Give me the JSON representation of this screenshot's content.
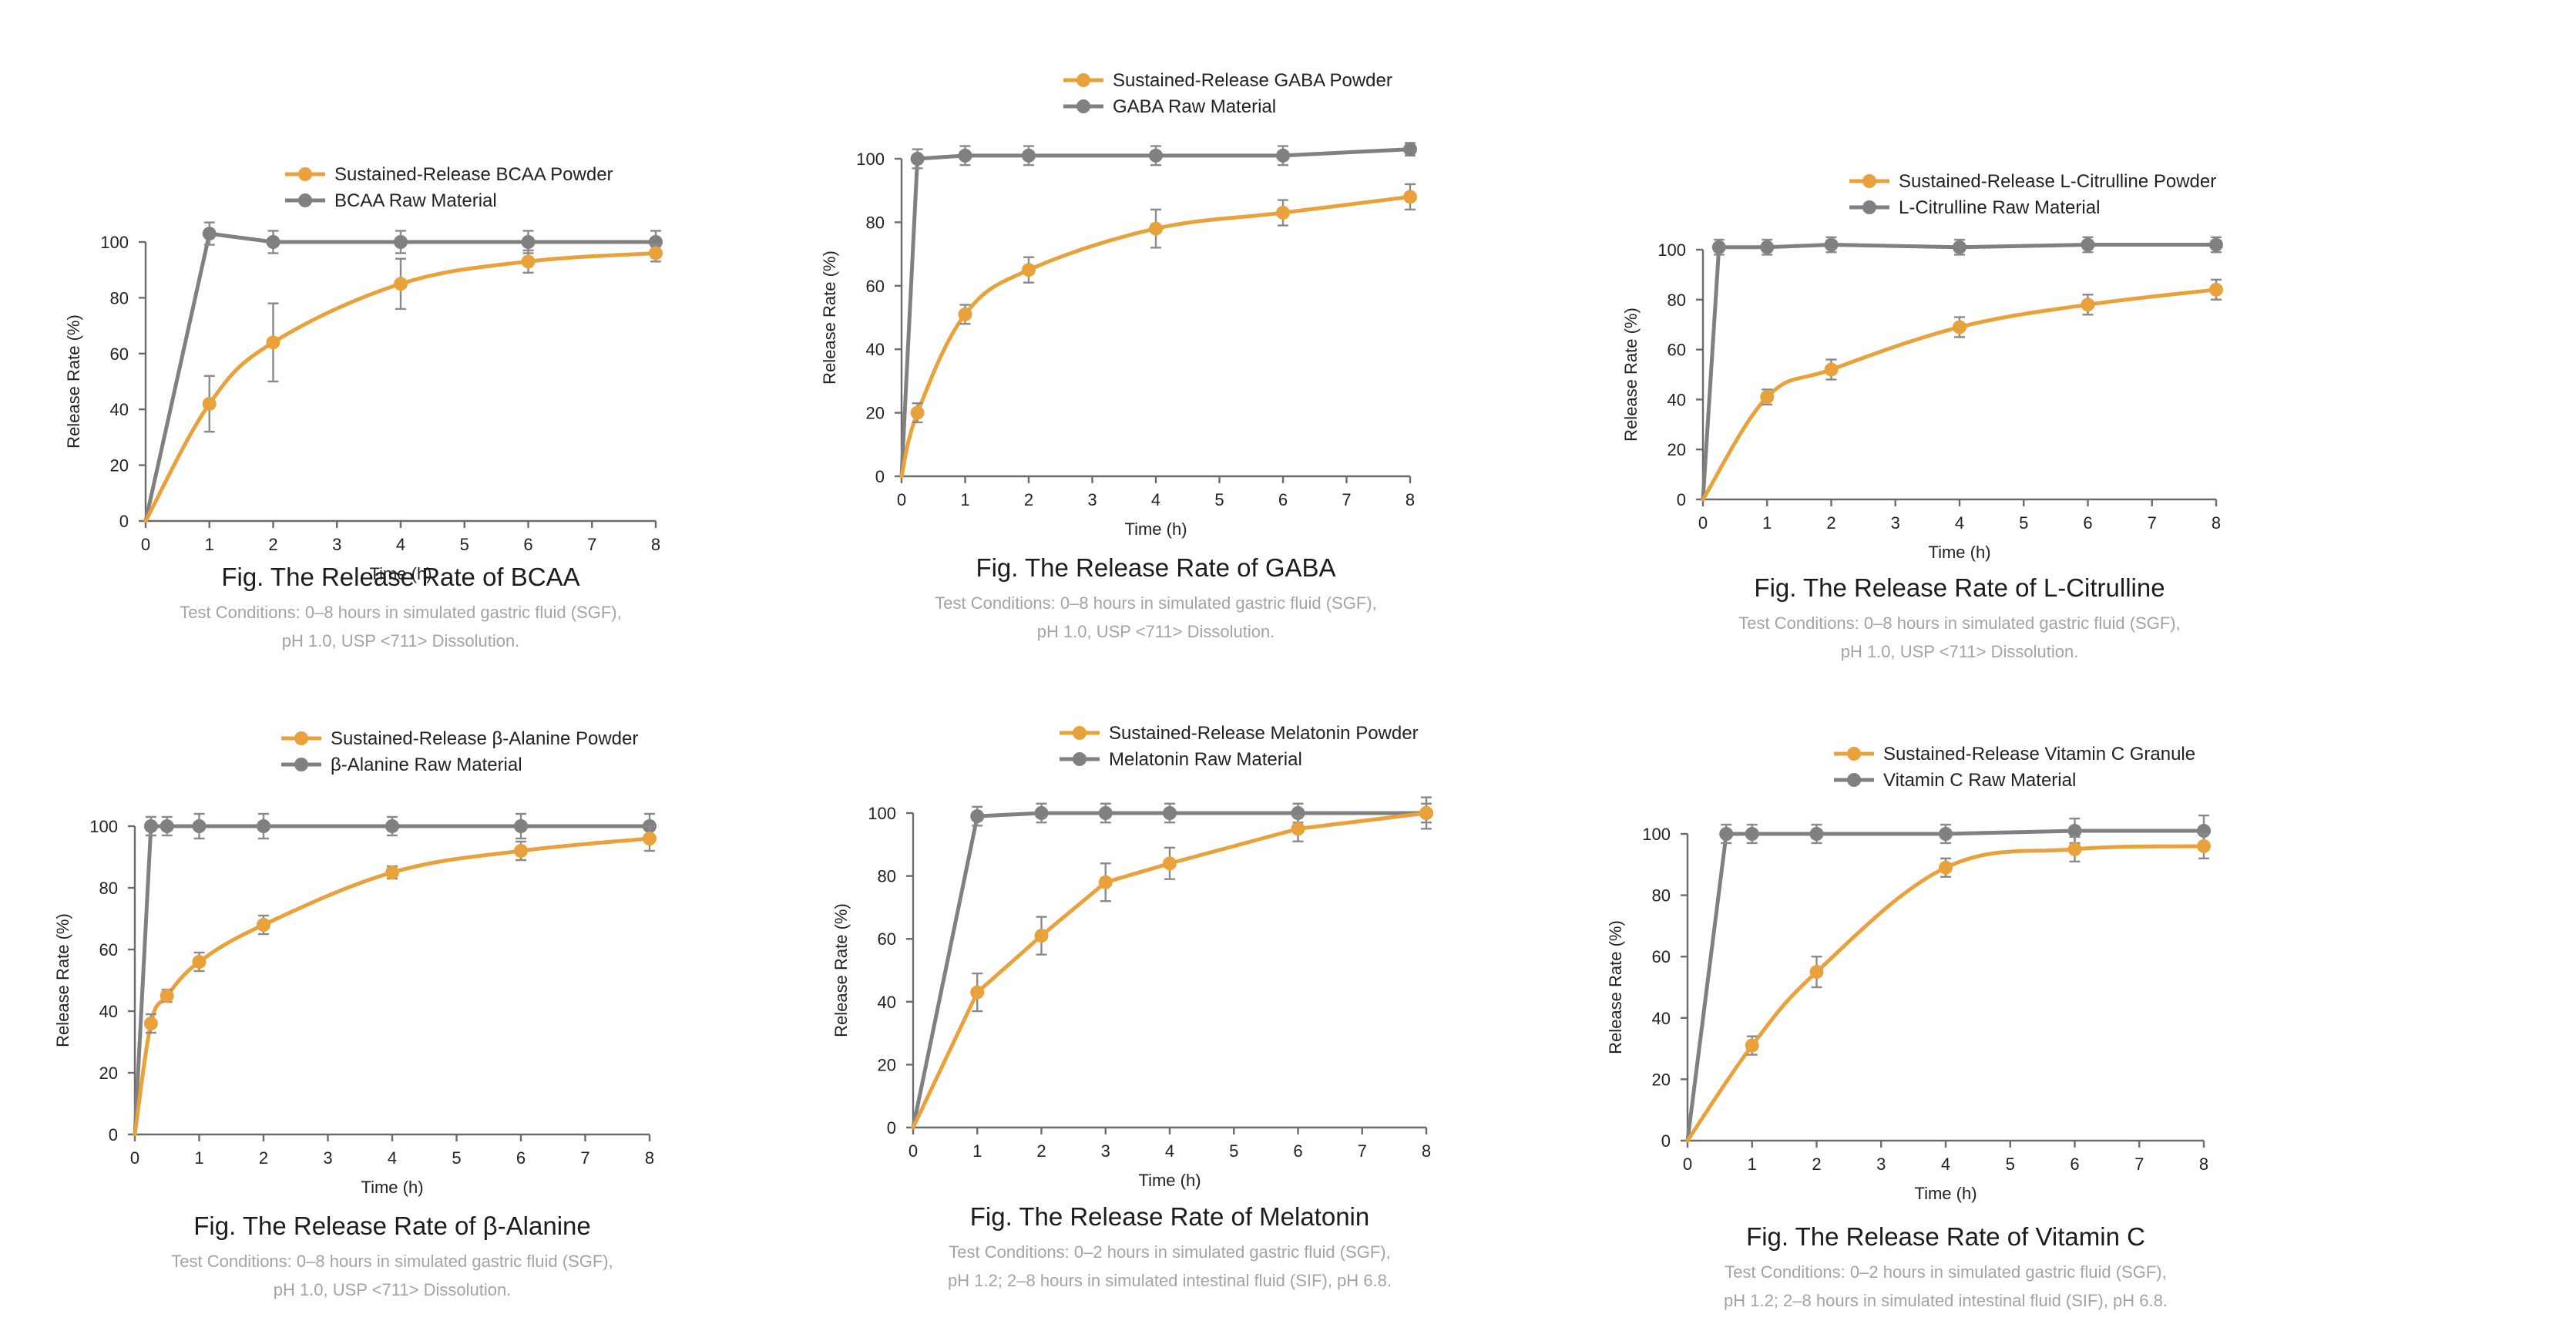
{
  "colors": {
    "sustained": "#E9A23B",
    "raw": "#808080"
  },
  "chart_data": [
    {
      "type": "line",
      "title": "Fig. The Release Rate of BCAA",
      "conditions": [
        "Test Conditions: 0–8 hours in simulated gastric fluid (SGF),",
        "pH 1.0, USP <711> Dissolution."
      ],
      "xlabel": "Time (h)",
      "ylabel": "Release Rate (%)",
      "xlim": [
        0,
        8
      ],
      "ylim": [
        0,
        100
      ],
      "xticks": [
        0,
        1,
        2,
        3,
        4,
        5,
        6,
        7,
        8
      ],
      "yticks": [
        0,
        20,
        40,
        60,
        80,
        100
      ],
      "smooth": true,
      "legend": "top-left",
      "series": [
        {
          "name": "Sustained-Release BCAA Powder",
          "color": "#E9A23B",
          "x": [
            0,
            1,
            2,
            4,
            6,
            8
          ],
          "y": [
            0,
            42,
            64,
            85,
            93,
            96
          ],
          "err": [
            0,
            10,
            14,
            9,
            4,
            3
          ]
        },
        {
          "name": "BCAA Raw Material",
          "color": "#808080",
          "x": [
            0,
            1,
            2,
            4,
            6,
            8
          ],
          "y": [
            0,
            103,
            100,
            100,
            100,
            100
          ],
          "err": [
            0,
            4,
            4,
            4,
            4,
            4
          ]
        }
      ]
    },
    {
      "type": "line",
      "title": "Fig. The Release Rate of GABA",
      "conditions": [
        "Test Conditions: 0–8 hours in simulated gastric fluid (SGF),",
        "pH 1.0, USP <711> Dissolution."
      ],
      "xlabel": "Time (h)",
      "ylabel": "Release Rate (%)",
      "xlim": [
        0,
        8
      ],
      "ylim": [
        0,
        100
      ],
      "xticks": [
        0,
        1,
        2,
        3,
        4,
        5,
        6,
        7,
        8
      ],
      "yticks": [
        0,
        20,
        40,
        60,
        80,
        100
      ],
      "smooth": true,
      "legend": "top-left",
      "series": [
        {
          "name": "Sustained-Release GABA Powder",
          "color": "#E9A23B",
          "x": [
            0,
            0.25,
            1,
            2,
            4,
            6,
            8
          ],
          "y": [
            0,
            20,
            51,
            65,
            78,
            83,
            88
          ],
          "err": [
            0,
            3,
            3,
            4,
            6,
            4,
            4
          ]
        },
        {
          "name": "GABA Raw Material",
          "color": "#808080",
          "x": [
            0,
            0.25,
            1,
            2,
            4,
            6,
            8
          ],
          "y": [
            0,
            100,
            101,
            101,
            101,
            101,
            103
          ],
          "err": [
            0,
            3,
            3,
            3,
            3,
            3,
            2
          ]
        }
      ]
    },
    {
      "type": "line",
      "title": "Fig. The Release Rate of L-Citrulline",
      "conditions": [
        "Test Conditions: 0–8 hours in simulated gastric fluid (SGF),",
        "pH 1.0, USP <711> Dissolution."
      ],
      "xlabel": "Time (h)",
      "ylabel": "Release Rate (%)",
      "xlim": [
        0,
        8
      ],
      "ylim": [
        0,
        100
      ],
      "xticks": [
        0,
        1,
        2,
        3,
        4,
        5,
        6,
        7,
        8
      ],
      "yticks": [
        0,
        20,
        40,
        60,
        80,
        100
      ],
      "smooth": true,
      "legend": "top-left",
      "series": [
        {
          "name": "Sustained-Release L-Citrulline Powder",
          "color": "#E9A23B",
          "x": [
            0,
            1,
            2,
            4,
            6,
            8
          ],
          "y": [
            0,
            41,
            52,
            69,
            78,
            84
          ],
          "err": [
            0,
            3,
            4,
            4,
            4,
            4
          ]
        },
        {
          "name": "L-Citrulline Raw Material",
          "color": "#808080",
          "x": [
            0,
            0.25,
            1,
            2,
            4,
            6,
            8
          ],
          "y": [
            0,
            101,
            101,
            102,
            101,
            102,
            102
          ],
          "err": [
            0,
            3,
            3,
            3,
            3,
            3,
            3
          ]
        }
      ]
    },
    {
      "type": "line",
      "title": "Fig. The Release Rate of β-Alanine",
      "conditions": [
        "Test Conditions: 0–8 hours in simulated gastric fluid (SGF),",
        "pH 1.0, USP <711> Dissolution."
      ],
      "xlabel": "Time (h)",
      "ylabel": "Release Rate (%)",
      "xlim": [
        0,
        8
      ],
      "ylim": [
        0,
        100
      ],
      "xticks": [
        0,
        1,
        2,
        3,
        4,
        5,
        6,
        7,
        8
      ],
      "yticks": [
        0,
        20,
        40,
        60,
        80,
        100
      ],
      "smooth": true,
      "legend": "top-left",
      "series": [
        {
          "name": "Sustained-Release β-Alanine Powder",
          "color": "#E9A23B",
          "x": [
            0,
            0.25,
            0.5,
            1,
            2,
            4,
            6,
            8
          ],
          "y": [
            0,
            36,
            45,
            56,
            68,
            85,
            92,
            96
          ],
          "err": [
            0,
            3,
            2,
            3,
            3,
            2,
            3,
            4
          ]
        },
        {
          "name": "β-Alanine Raw Material",
          "color": "#808080",
          "x": [
            0,
            0.25,
            0.5,
            1,
            2,
            4,
            6,
            8
          ],
          "y": [
            0,
            100,
            100,
            100,
            100,
            100,
            100,
            100
          ],
          "err": [
            0,
            3,
            3,
            4,
            4,
            3,
            4,
            4
          ]
        }
      ]
    },
    {
      "type": "line",
      "title": "Fig. The Release Rate of Melatonin",
      "conditions": [
        "Test Conditions: 0–2 hours in simulated gastric fluid (SGF),",
        "pH 1.2; 2–8 hours in simulated intestinal fluid (SIF), pH 6.8."
      ],
      "xlabel": "Time (h)",
      "ylabel": "Release Rate (%)",
      "xlim": [
        0,
        8
      ],
      "ylim": [
        0,
        100
      ],
      "xticks": [
        0,
        1,
        2,
        3,
        4,
        5,
        6,
        7,
        8
      ],
      "yticks": [
        0,
        20,
        40,
        60,
        80,
        100
      ],
      "smooth": false,
      "legend": "top-left",
      "series": [
        {
          "name": "Sustained-Release Melatonin Powder",
          "color": "#E9A23B",
          "x": [
            0,
            1,
            2,
            3,
            4,
            6,
            8
          ],
          "y": [
            0,
            43,
            61,
            78,
            84,
            95,
            100
          ],
          "err": [
            0,
            6,
            6,
            6,
            5,
            4,
            5
          ]
        },
        {
          "name": "Melatonin Raw Material",
          "color": "#808080",
          "x": [
            0,
            1,
            2,
            3,
            4,
            6,
            8
          ],
          "y": [
            0,
            99,
            100,
            100,
            100,
            100,
            100
          ],
          "err": [
            0,
            3,
            3,
            3,
            3,
            3,
            3
          ]
        }
      ]
    },
    {
      "type": "line",
      "title": "Fig. The Release Rate of Vitamin C",
      "conditions": [
        "Test Conditions: 0–2 hours in simulated gastric fluid (SGF),",
        "pH 1.2; 2–8 hours in simulated intestinal fluid (SIF), pH 6.8."
      ],
      "xlabel": "Time (h)",
      "ylabel": "Release Rate (%)",
      "xlim": [
        0,
        8
      ],
      "ylim": [
        0,
        100
      ],
      "xticks": [
        0,
        1,
        2,
        3,
        4,
        5,
        6,
        7,
        8
      ],
      "yticks": [
        0,
        20,
        40,
        60,
        80,
        100
      ],
      "smooth": true,
      "legend": "top-left",
      "series": [
        {
          "name": "Sustained-Release Vitamin C Granule",
          "color": "#E9A23B",
          "x": [
            0,
            1,
            2,
            4,
            6,
            8
          ],
          "y": [
            0,
            31,
            55,
            89,
            95,
            96
          ],
          "err": [
            0,
            3,
            5,
            3,
            4,
            4
          ]
        },
        {
          "name": "Vitamin C Raw Material",
          "color": "#808080",
          "x": [
            0,
            0.6,
            1,
            2,
            4,
            6,
            8
          ],
          "y": [
            0,
            100,
            100,
            100,
            100,
            101,
            101
          ],
          "err": [
            0,
            3,
            3,
            3,
            3,
            4,
            5
          ]
        }
      ]
    }
  ]
}
